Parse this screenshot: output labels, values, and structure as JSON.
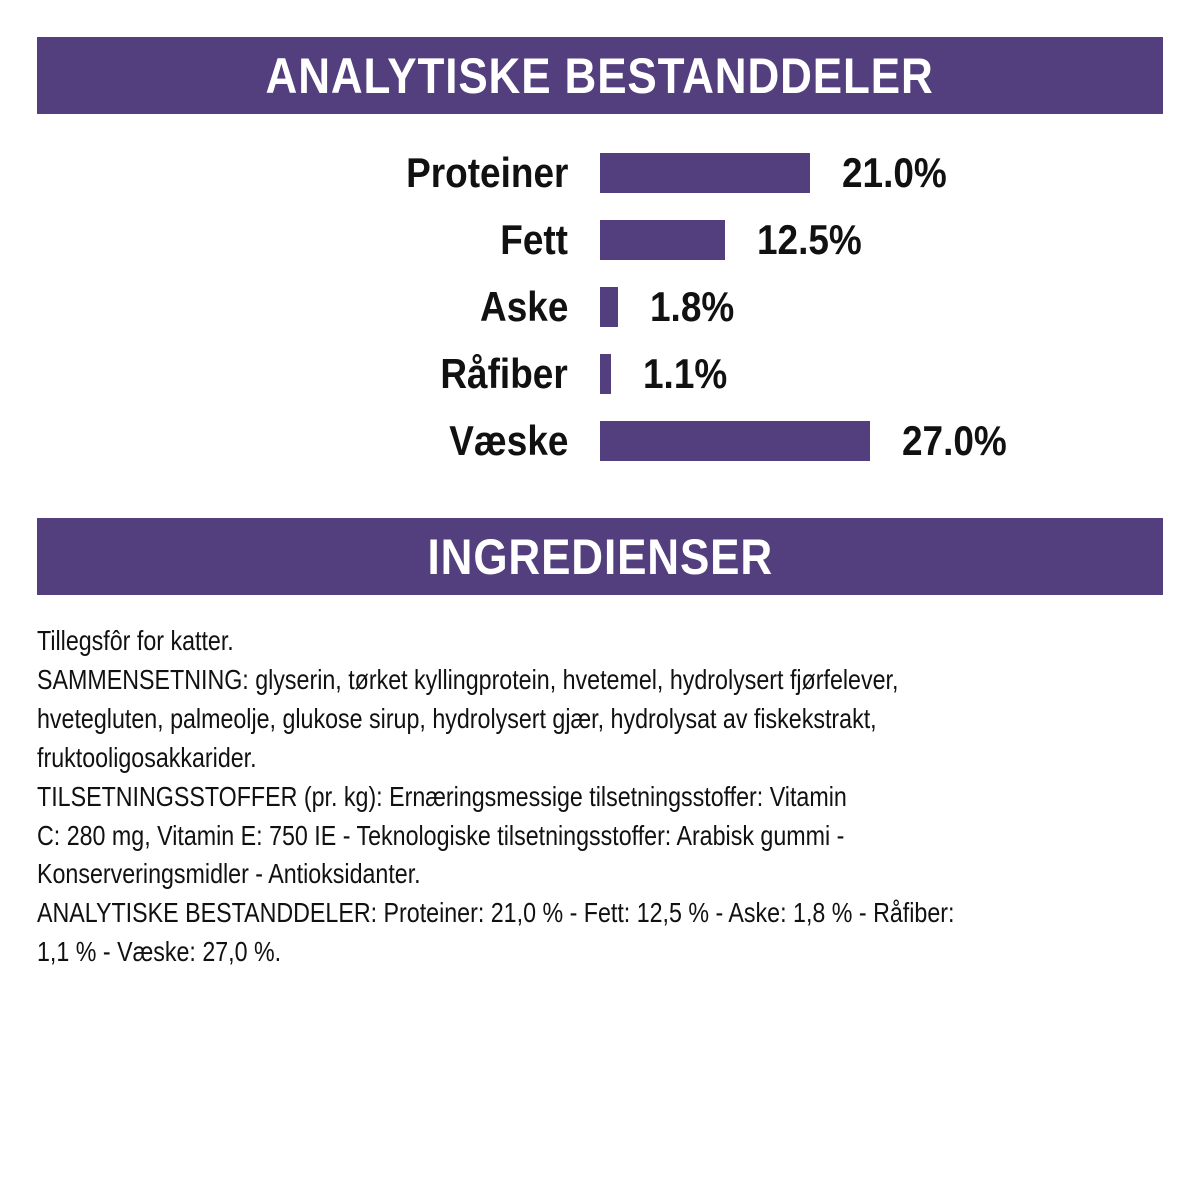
{
  "section1": {
    "title": "ANALYTISKE BESTANDDELER"
  },
  "section2": {
    "title": "INGREDIENSER"
  },
  "colors": {
    "accent": "#533e7e",
    "text": "#111111"
  },
  "chart_data": {
    "type": "bar",
    "orientation": "horizontal",
    "title": "ANALYTISKE BESTANDDELER",
    "categories": [
      "Proteiner",
      "Fett",
      "Aske",
      "Råfiber",
      "Væske"
    ],
    "values": [
      21.0,
      12.5,
      1.8,
      1.1,
      27.0
    ],
    "data_labels": [
      "21.0%",
      "12.5%",
      "1.8%",
      "1.1%",
      "27.0%"
    ],
    "unit": "%",
    "grid": false,
    "color": "#533e7e"
  },
  "ingredients": {
    "lines": [
      "Tillegsfôr for katter.",
      "SAMMENSETNING: glyserin, tørket kyllingprotein, hvetemel, hydrolysert fjørfelever,",
      "hvetegluten, palmeolje, glukose sirup, hydrolysert gjær, hydrolysat av fiskekstrakt,",
      "fruktooligosakkarider.",
      "TILSETNINGSSTOFFER (pr. kg): Ernæringsmessige tilsetningsstoffer: Vitamin",
      "C: 280 mg, Vitamin E: 750 IE - Teknologiske tilsetningsstoffer: Arabisk gummi -",
      "Konserveringsmidler - Antioksidanter.",
      "ANALYTISKE BESTANDDELER: Proteiner: 21,0 % - Fett: 12,5 % - Aske: 1,8 % - Råfiber:",
      "1,1 % - Væske: 27,0 %."
    ]
  }
}
